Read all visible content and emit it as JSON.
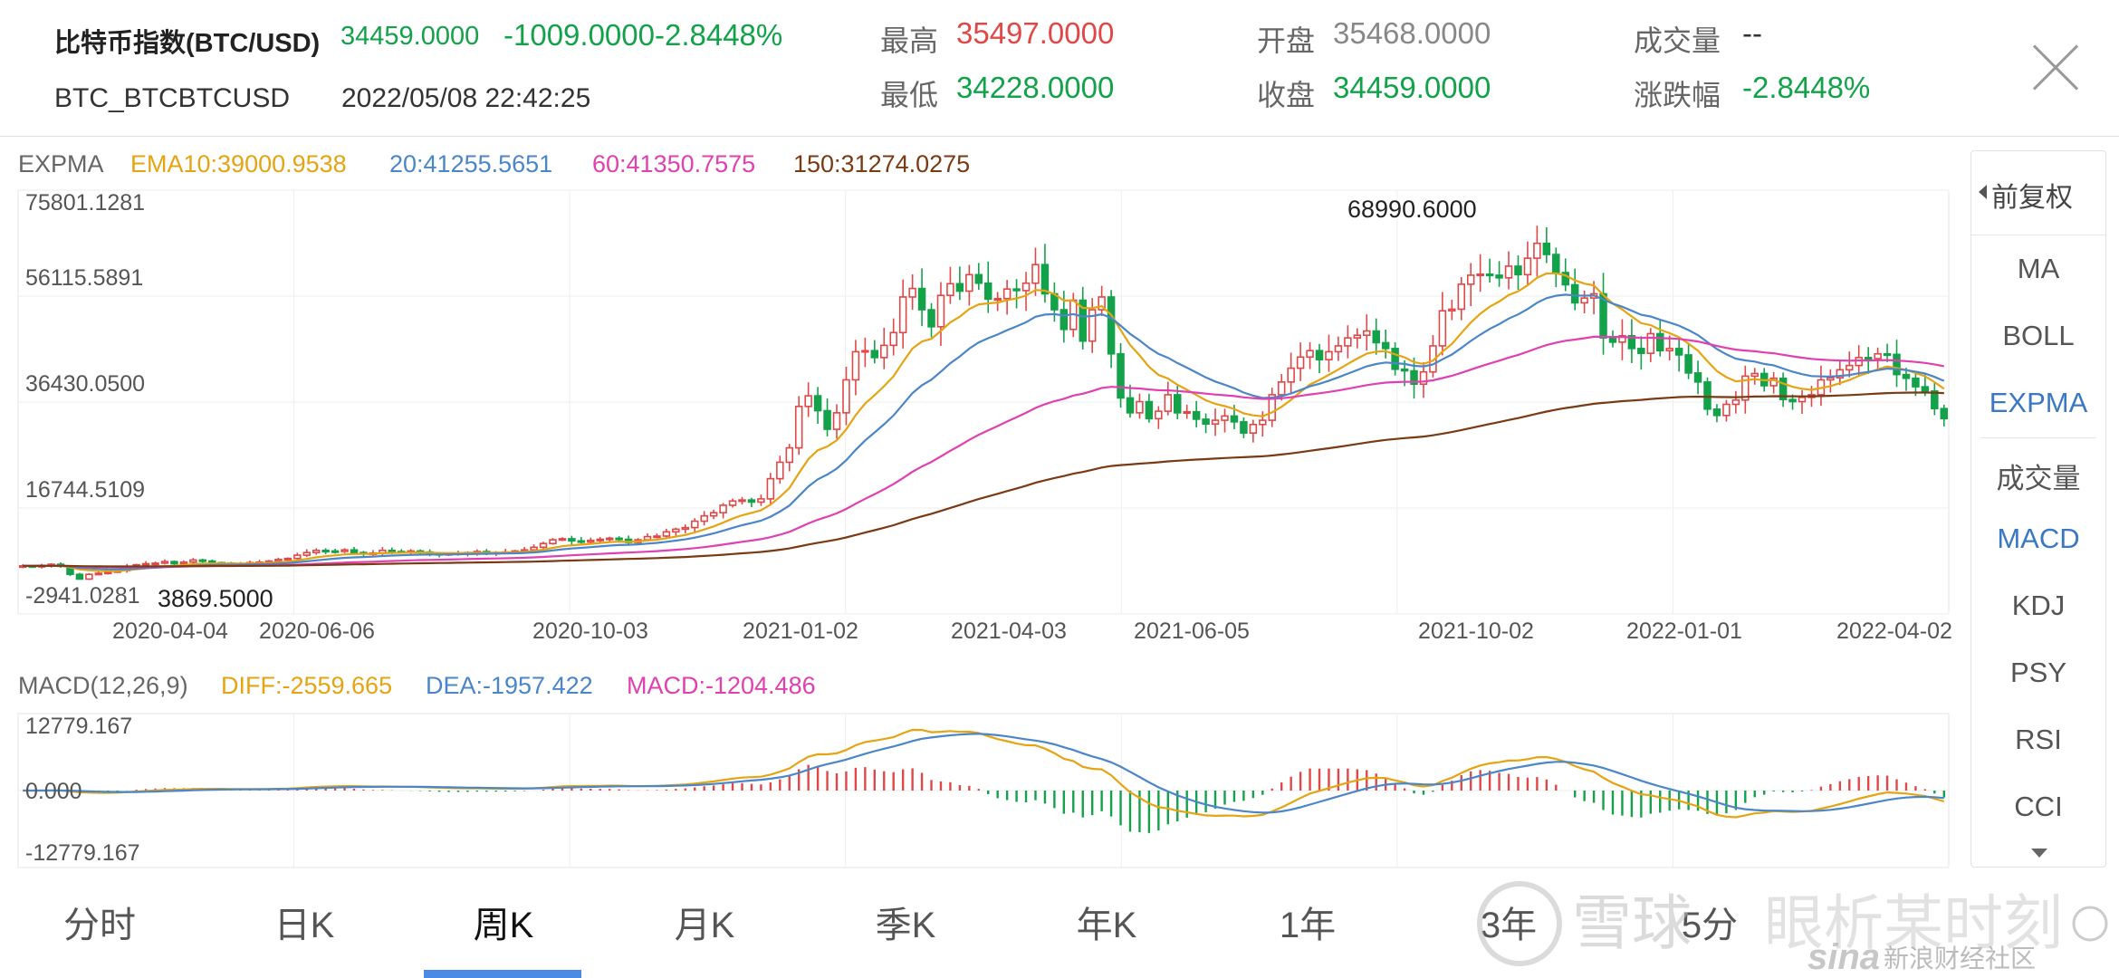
{
  "header": {
    "name": "比特币指数(BTC/USD)",
    "price": "34459.0000",
    "change": "-1009.0000-2.8448%",
    "code": "BTC_BTCBTCUSD",
    "time": "2022/05/08 22:42:25",
    "stats": [
      {
        "label": "最高",
        "value": "35497.0000",
        "color": "#e04848"
      },
      {
        "label": "开盘",
        "value": "35468.0000",
        "color": "#888888"
      },
      {
        "label": "成交量",
        "value": "--",
        "color": "#333333"
      },
      {
        "label": "最低",
        "value": "34228.0000",
        "color": "#13a24a"
      },
      {
        "label": "收盘",
        "value": "34459.0000",
        "color": "#13a24a"
      },
      {
        "label": "涨跌幅",
        "value": "-2.8448%",
        "color": "#13a24a"
      }
    ]
  },
  "legend": {
    "title": "EXPMA",
    "ema10": "EMA10:39000.9538",
    "ema20": "20:41255.5651",
    "ema60": "60:41350.7575",
    "ema150": "150:31274.0275"
  },
  "price_axis": [
    "75801.1281",
    "56115.5891",
    "36430.0500",
    "16744.5109",
    "-2941.0281"
  ],
  "max_label": "68990.6000",
  "min_label": "3869.5000",
  "dates": [
    "2020-04-04",
    "2020-06-06",
    "2020-10-03",
    "2021-01-02",
    "2021-04-03",
    "2021-06-05",
    "2021-10-02",
    "2022-01-01",
    "2022-04-02"
  ],
  "macd_legend": {
    "title": "MACD(12,26,9)",
    "diff": "DIFF:-2559.665",
    "dea": "DEA:-1957.422",
    "macd": "MACD:-1204.486"
  },
  "macd_axis": [
    "12779.167",
    "0.000",
    "-12779.167"
  ],
  "sidebar": {
    "fq": "前复权",
    "items": [
      "MA",
      "BOLL",
      "EXPMA",
      "成交量",
      "MACD",
      "KDJ",
      "PSY",
      "RSI",
      "CCI"
    ]
  },
  "tabs": [
    "分时",
    "日K",
    "周K",
    "月K",
    "季K",
    "年K",
    "1年",
    "3年",
    "5分"
  ],
  "watermark": {
    "brand1": "雪球",
    "brand2": "眼析某时刻",
    "sina": "sina",
    "sina_cn": "新浪财经社区"
  },
  "colors": {
    "up": "#e04848",
    "down": "#13a24a",
    "ema10": "#e5a412",
    "ema20": "#4a86c8",
    "ema60": "#e040b0",
    "ema150": "#7a3a14",
    "accent": "#4b8be6"
  },
  "chart_data": {
    "type": "candlestick",
    "yrange": [
      -2941.0281,
      75801.1281
    ],
    "max": 68990.6,
    "min": 3869.5,
    "close": [
      6800,
      6600,
      6900,
      7100,
      6700,
      5200,
      4300,
      5200,
      5400,
      5600,
      5900,
      6700,
      7000,
      7200,
      7300,
      7600,
      7200,
      7500,
      7900,
      7700,
      7400,
      7300,
      7100,
      7200,
      7400,
      7500,
      7700,
      8000,
      8200,
      8800,
      9300,
      9700,
      9600,
      9500,
      9800,
      9300,
      9100,
      9200,
      9700,
      9500,
      9300,
      9600,
      9400,
      9100,
      9000,
      9100,
      9200,
      9300,
      9500,
      9200,
      9300,
      9400,
      9600,
      9800,
      10300,
      11000,
      11700,
      11900,
      11500,
      11300,
      11600,
      11800,
      12000,
      11800,
      11200,
      11700,
      12300,
      12400,
      13200,
      13700,
      14000,
      15200,
      16200,
      16800,
      18200,
      19000,
      19200,
      18800,
      19400,
      23200,
      26300,
      29000,
      36800,
      38800,
      36000,
      32500,
      35600,
      41800,
      47100,
      47300,
      46000,
      48300,
      50700,
      57400,
      59000,
      55000,
      51800,
      57700,
      59900,
      58500,
      61600,
      60000,
      57000,
      57100,
      58900,
      58600,
      60000,
      63500,
      58000,
      55000,
      51300,
      56800,
      49100,
      55000,
      57400,
      46700,
      38400,
      35600,
      37700,
      34500,
      35900,
      39000,
      35600,
      35800,
      34400,
      33500,
      34200,
      35000,
      33900,
      31800,
      33400,
      34200,
      39000,
      41400,
      44000,
      46100,
      47300,
      45600,
      47100,
      48200,
      49700,
      50200,
      51000,
      48800,
      47700,
      43800,
      43500,
      41000,
      43300,
      48200,
      54800,
      55100,
      59800,
      61500,
      61700,
      61500,
      61000,
      63200,
      61600,
      64700,
      67500,
      65400,
      62000,
      59700,
      56300,
      57200,
      58000,
      49700,
      48900,
      50100,
      47700,
      46800,
      50500,
      47300,
      47700,
      46500,
      43100,
      41400,
      36300,
      35100,
      37200,
      38000,
      42500,
      43000,
      40700,
      42100,
      38100,
      37700,
      38500,
      39000,
      41800,
      42200,
      43700,
      44500,
      46000,
      45800,
      46700,
      46600,
      42800,
      42100,
      40500,
      39700,
      36400,
      34500
    ]
  },
  "macd_data": {
    "range": [
      -12779.167,
      12779.167
    ],
    "bars_summary": "red bars positive during 2020-10 to 2021-05 and 2021-09 to 2021-12, green negative during 2021-05 to 2021-09 and 2022"
  }
}
